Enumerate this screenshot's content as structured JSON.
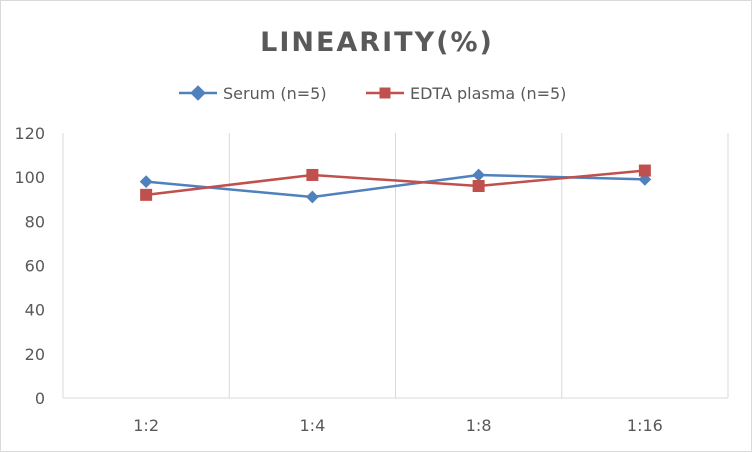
{
  "chart_data": {
    "type": "line",
    "title": "LINEARITY(%)",
    "categories": [
      "1:2",
      "1:4",
      "1:8",
      "1:16"
    ],
    "series": [
      {
        "name": "Serum (n=5)",
        "values": [
          98,
          91,
          101,
          99
        ],
        "color": "#4f81bd",
        "marker": "diamond"
      },
      {
        "name": "EDTA plasma (n=5)",
        "values": [
          92,
          101,
          96,
          103
        ],
        "color": "#c0504d",
        "marker": "square"
      }
    ],
    "ylim": [
      0,
      120
    ],
    "yticks": [
      "0",
      "20",
      "40",
      "60",
      "80",
      "100",
      "120"
    ],
    "legend_position": "top",
    "grid": "vertical"
  }
}
